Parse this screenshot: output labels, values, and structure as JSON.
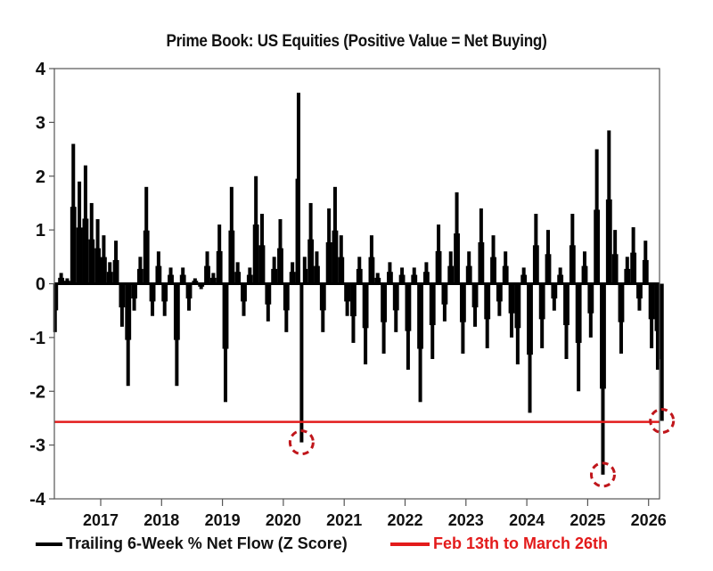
{
  "chart_data": {
    "type": "bar",
    "title": "Prime Book: US Equities (Positive Value = Net Buying)",
    "xlabel": "",
    "ylabel": "",
    "ylim": [
      -4,
      4
    ],
    "yticks": [
      4,
      3,
      2,
      1,
      0,
      -1,
      -2,
      -3,
      -4
    ],
    "xticks": [
      "2017",
      "2018",
      "2019",
      "2020",
      "2021",
      "2022",
      "2023",
      "2024",
      "2025",
      "2026"
    ],
    "grid": false,
    "legend_position": "bottom",
    "series": [
      {
        "name": "Trailing 6-Week % Net Flow (Z Score)",
        "color": "#000000",
        "x": [
          2016.25,
          2016.35,
          2016.45,
          2016.55,
          2016.65,
          2016.75,
          2016.85,
          2016.95,
          2017.05,
          2017.15,
          2017.25,
          2017.35,
          2017.45,
          2017.55,
          2017.65,
          2017.75,
          2017.85,
          2017.95,
          2018.05,
          2018.15,
          2018.25,
          2018.35,
          2018.45,
          2018.55,
          2018.65,
          2018.75,
          2018.85,
          2018.95,
          2019.05,
          2019.15,
          2019.25,
          2019.35,
          2019.45,
          2019.55,
          2019.65,
          2019.75,
          2019.85,
          2019.95,
          2020.05,
          2020.15,
          2020.25,
          2020.3,
          2020.35,
          2020.45,
          2020.55,
          2020.65,
          2020.75,
          2020.85,
          2020.95,
          2021.05,
          2021.15,
          2021.25,
          2021.35,
          2021.45,
          2021.55,
          2021.65,
          2021.75,
          2021.85,
          2021.95,
          2022.05,
          2022.15,
          2022.25,
          2022.35,
          2022.45,
          2022.55,
          2022.65,
          2022.75,
          2022.85,
          2022.95,
          2023.05,
          2023.15,
          2023.25,
          2023.35,
          2023.45,
          2023.55,
          2023.65,
          2023.75,
          2023.85,
          2023.95,
          2024.05,
          2024.15,
          2024.25,
          2024.35,
          2024.45,
          2024.55,
          2024.65,
          2024.75,
          2024.85,
          2024.95,
          2025.05,
          2025.15,
          2025.25,
          2025.35,
          2025.45,
          2025.55,
          2025.65,
          2025.75,
          2025.85,
          2025.95,
          2026.05,
          2026.15,
          2026.22
        ],
        "values": [
          -0.9,
          0.2,
          0.1,
          2.6,
          1.9,
          2.2,
          1.5,
          1.2,
          0.9,
          0.4,
          0.8,
          -0.8,
          -1.9,
          -0.5,
          0.5,
          1.8,
          -0.6,
          0.6,
          -0.6,
          0.3,
          -1.9,
          0.3,
          -0.5,
          0.1,
          -0.1,
          0.6,
          0.2,
          1.1,
          -2.2,
          1.8,
          0.4,
          -0.6,
          0.3,
          2.0,
          1.3,
          -0.7,
          0.5,
          1.2,
          -0.9,
          0.4,
          3.55,
          -2.95,
          0.5,
          1.5,
          0.6,
          -0.9,
          1.4,
          1.8,
          0.9,
          -0.6,
          -1.1,
          0.5,
          -1.5,
          0.9,
          0.2,
          -1.3,
          0.4,
          -0.9,
          0.3,
          -1.6,
          0.3,
          -2.2,
          0.4,
          -1.4,
          1.1,
          -0.7,
          0.6,
          1.7,
          -1.3,
          0.6,
          -0.8,
          1.4,
          -1.2,
          0.9,
          -0.6,
          0.6,
          -1.0,
          -1.5,
          0.3,
          -2.4,
          1.3,
          -1.2,
          1.0,
          -0.5,
          0.3,
          -1.4,
          1.3,
          -2.0,
          0.6,
          -1.0,
          2.5,
          -3.55,
          2.85,
          1.0,
          -1.3,
          0.5,
          1.05,
          -0.5,
          0.8,
          -1.2,
          -1.6,
          -2.55
        ]
      },
      {
        "name": "Feb 13th to March 26th",
        "color": "#e31b1b",
        "type": "hline",
        "value": -2.57
      }
    ],
    "annotations": [
      {
        "type": "dashed-circle",
        "color": "#c0161b",
        "x": 2020.3,
        "y": -2.95
      },
      {
        "type": "dashed-circle",
        "color": "#c0161b",
        "x": 2025.25,
        "y": -3.55
      },
      {
        "type": "dashed-circle",
        "color": "#c0161b",
        "x": 2026.22,
        "y": -2.55
      }
    ]
  },
  "legend": {
    "series1_label": "Trailing 6-Week % Net Flow (Z Score)",
    "series2_label": "Feb 13th to March 26th",
    "series1_color": "#000000",
    "series2_color": "#e31b1b"
  }
}
